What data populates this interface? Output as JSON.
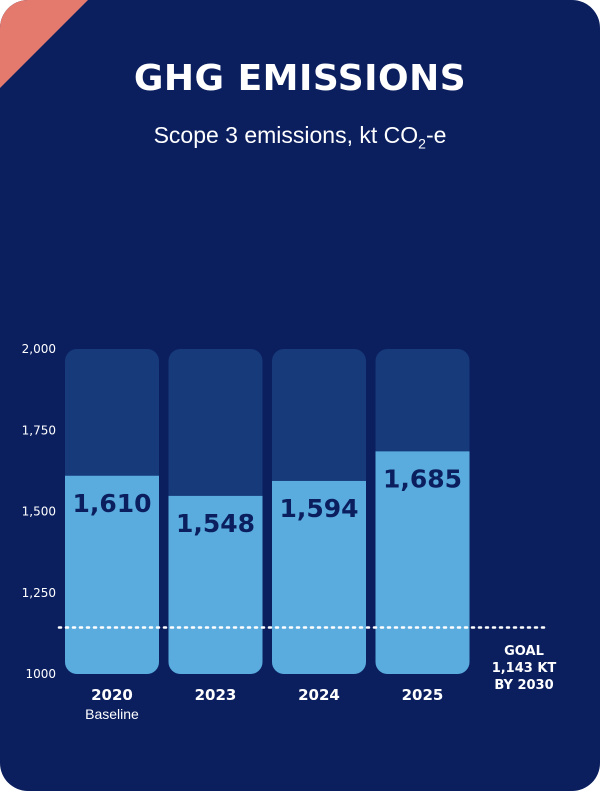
{
  "title": "GHG EMISSIONS",
  "subtitle": {
    "prefix": "Scope 3 emissions, kt CO",
    "subscript": "2",
    "suffix": "-e"
  },
  "colors": {
    "background": "#0b1f5f",
    "corner": "#e4796d",
    "bar_track": "#173a7a",
    "bar_fill": "#5aacdf",
    "value_text": "#0b1f5f",
    "text": "#ffffff"
  },
  "chart_data": {
    "type": "bar",
    "categories": [
      "2020",
      "2023",
      "2024",
      "2025"
    ],
    "category_sublabels": [
      "Baseline",
      "",
      "",
      ""
    ],
    "values": [
      1610,
      1548,
      1594,
      1685
    ],
    "value_labels": [
      "1,610",
      "1,548",
      "1,594",
      "1,685"
    ],
    "ylim": [
      1000,
      2000
    ],
    "y_ticks": [
      1000,
      1250,
      1500,
      1750,
      2000
    ],
    "y_tick_labels": [
      "1000",
      "1,250",
      "1,500",
      "1,750",
      "2,000"
    ],
    "goal": {
      "value": 1143,
      "label_lines": [
        "GOAL",
        "1,143 KT",
        "BY 2030"
      ]
    }
  }
}
